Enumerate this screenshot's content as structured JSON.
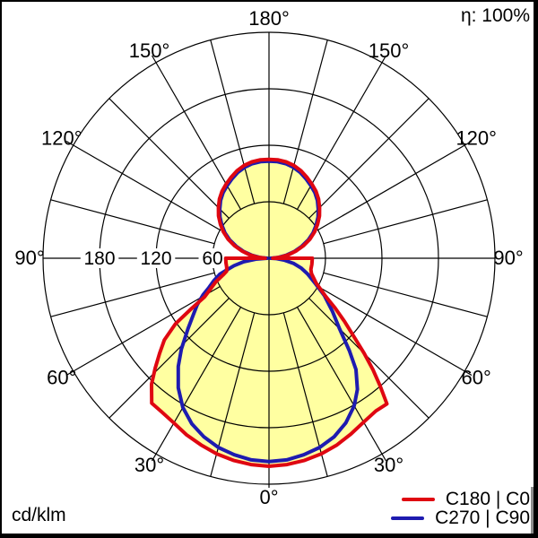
{
  "chart_data": {
    "type": "polar_photometric",
    "unit": "cd/klm",
    "efficiency": "η: 100%",
    "fill_color": "#ffffa1",
    "grid_color": "#000000",
    "gamma_axis": {
      "spoke_step_deg": 15,
      "labels": [
        {
          "deg": 0,
          "label": "0°"
        },
        {
          "deg": 30,
          "label": "30°"
        },
        {
          "deg": 60,
          "label": "60°"
        },
        {
          "deg": 90,
          "label": "90°"
        },
        {
          "deg": 120,
          "label": "120°"
        },
        {
          "deg": 150,
          "label": "150°"
        },
        {
          "deg": 180,
          "label": "180°"
        }
      ],
      "mirrored": true
    },
    "radial_axis": {
      "max": 240,
      "circles": [
        60,
        120,
        180,
        240
      ],
      "shown_labels": [
        "180",
        "120",
        "60"
      ]
    },
    "series": [
      {
        "name": "C180 | C0",
        "color": "#df0711",
        "right_plane": "C0",
        "left_plane": "C180",
        "right": {
          "gamma": [
            0,
            5,
            10,
            15,
            20,
            25,
            30,
            35,
            39,
            41,
            43,
            45,
            47,
            50,
            53,
            56,
            59,
            62,
            66,
            70,
            75,
            82,
            90,
            90,
            95,
            100,
            105,
            110,
            115,
            120,
            125,
            130,
            135,
            140,
            145,
            150,
            155,
            160,
            165,
            170,
            175,
            180
          ],
          "cd_per_klm": [
            221,
            220,
            218,
            215,
            211,
            206,
            201,
            198,
            199,
            180,
            162,
            143,
            125,
            105,
            88,
            73,
            64,
            57,
            52,
            48,
            46,
            46,
            46,
            4,
            12,
            21,
            30,
            39,
            48,
            56,
            63,
            70,
            76,
            82,
            87,
            91,
            95,
            99,
            102,
            104,
            105,
            105
          ]
        },
        "left": {
          "gamma": [
            0,
            5,
            10,
            15,
            20,
            25,
            30,
            35,
            39,
            43,
            46,
            49,
            52,
            55,
            57,
            59,
            62,
            66,
            70,
            73,
            78,
            84,
            90,
            90,
            95,
            100,
            105,
            110,
            115,
            120,
            125,
            130,
            135,
            140,
            145,
            150,
            155,
            160,
            165,
            170,
            175,
            180
          ],
          "cd_per_klm": [
            221,
            220,
            218,
            215,
            211,
            207,
            202,
            199,
            198,
            183,
            168,
            154,
            141,
            121,
            98,
            80,
            71,
            62,
            52,
            47,
            46,
            46,
            46,
            4,
            12,
            21,
            30,
            39,
            48,
            56,
            63,
            70,
            76,
            82,
            87,
            91,
            95,
            99,
            102,
            104,
            105,
            105
          ]
        }
      },
      {
        "name": "C270 | C90",
        "color": "#1e1bb0",
        "right_plane": "C90",
        "left_plane": "C270",
        "right": {
          "gamma": [
            0,
            5,
            10,
            15,
            20,
            25,
            30,
            34,
            38,
            41,
            45,
            50,
            56,
            61,
            68,
            73,
            78,
            83,
            87,
            90,
            95,
            100,
            105,
            110,
            115,
            120,
            125,
            130,
            135,
            140,
            145,
            150,
            155,
            160,
            165,
            170,
            175,
            180
          ],
          "cd_per_klm": [
            216,
            215,
            212,
            208,
            202,
            193,
            181,
            168,
            150,
            130,
            106,
            88,
            71,
            57,
            44,
            36,
            27,
            16,
            8,
            2,
            10,
            19,
            28,
            37,
            46,
            54,
            61,
            68,
            74,
            80,
            85,
            89,
            93,
            97,
            100,
            102,
            103,
            103
          ]
        },
        "left": {
          "gamma": [
            0,
            5,
            10,
            15,
            20,
            25,
            30,
            35,
            40,
            44,
            49,
            53,
            57,
            61,
            64,
            68,
            72,
            74,
            78,
            82,
            86,
            90,
            95,
            100,
            105,
            110,
            115,
            120,
            125,
            130,
            135,
            140,
            145,
            150,
            155,
            160,
            165,
            170,
            175,
            180
          ],
          "cd_per_klm": [
            216,
            215,
            212,
            208,
            202,
            194,
            183,
            168,
            150,
            134,
            114,
            101,
            91,
            80,
            71,
            63,
            55,
            48,
            38,
            27,
            14,
            2,
            10,
            19,
            28,
            37,
            46,
            54,
            61,
            68,
            74,
            80,
            85,
            89,
            93,
            97,
            100,
            102,
            103,
            103
          ]
        }
      }
    ]
  },
  "legend": [
    {
      "label": "C180 | C0",
      "color": "#df0711"
    },
    {
      "label": "C270 | C90",
      "color": "#1e1bb0"
    }
  ]
}
